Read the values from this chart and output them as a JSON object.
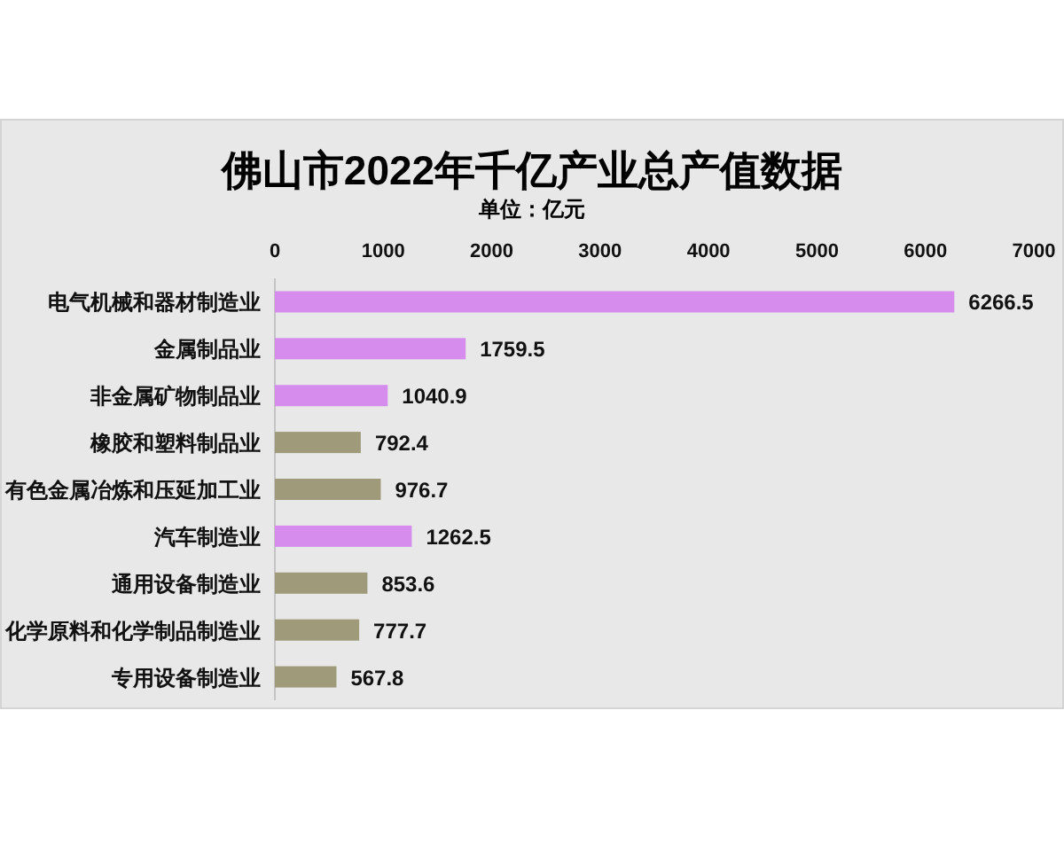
{
  "chart_data": {
    "type": "bar",
    "orientation": "horizontal",
    "title": "佛山市2022年千亿产业总产值数据",
    "subtitle": "单位：亿元",
    "categories": [
      "电气机械和器材制造业",
      "金属制品业",
      "非金属矿物制品业",
      "橡胶和塑料制品业",
      "有色金属冶炼和压延加工业",
      "汽车制造业",
      "通用设备制造业",
      "化学原料和化学制品制造业",
      "专用设备制造业"
    ],
    "values": [
      6266.5,
      1759.5,
      1040.9,
      792.4,
      976.7,
      1262.5,
      853.6,
      777.7,
      567.8
    ],
    "colors": [
      "#d58ced",
      "#d58ced",
      "#d58ced",
      "#9e9a7a",
      "#9e9a7a",
      "#d58ced",
      "#9e9a7a",
      "#9e9a7a",
      "#9e9a7a"
    ],
    "xlim": [
      0,
      7000
    ],
    "xticks": [
      0,
      1000,
      2000,
      3000,
      4000,
      5000,
      6000,
      7000
    ],
    "data_labels": true
  }
}
